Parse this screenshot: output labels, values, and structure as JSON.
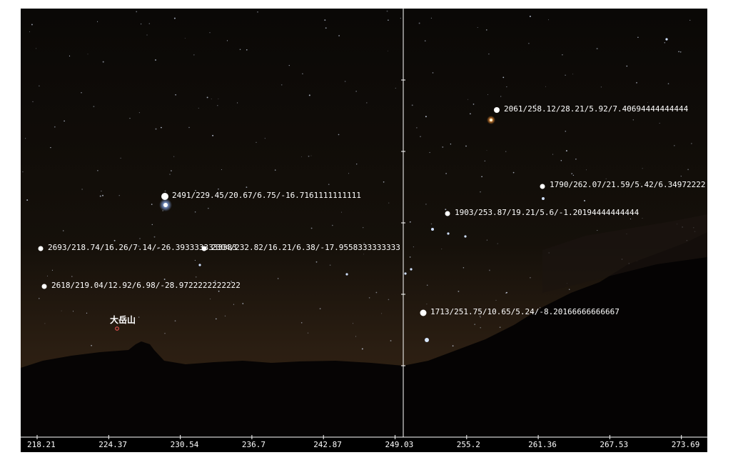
{
  "stars": [
    {
      "id": "2061",
      "label": "2061/258.12/28.21/5.92/7.40694444444444"
    },
    {
      "id": "1790",
      "label": "1790/262.07/21.59/5.42/6.34972222"
    },
    {
      "id": "2491",
      "label": "2491/229.45/20.67/6.75/-16.7161111111111"
    },
    {
      "id": "1903",
      "label": "1903/253.87/19.21/5.6/-1.20194444444444"
    },
    {
      "id": "2693",
      "label": "2693/218.74/16.26/7.14/-26.3933333333333"
    },
    {
      "id": "2304",
      "label": "2304/232.82/16.21/6.38/-17.9558333333333"
    },
    {
      "id": "2618",
      "label": "2618/219.04/12.92/6.98/-28.9722222222222"
    },
    {
      "id": "1713",
      "label": "1713/251.75/10.65/5.24/-8.20166666666667"
    }
  ],
  "landmark": {
    "label": "大岳山",
    "color": "#ff5a5a"
  },
  "x_axis": {
    "ticks": [
      "218.21",
      "224.37",
      "230.54",
      "236.7",
      "242.87",
      "249.03",
      "255.2",
      "261.36",
      "267.53",
      "273.69"
    ]
  },
  "colors": {
    "sky": "#0b0806",
    "horizon": "#2a1d10",
    "mountain": "#070505",
    "axis": "#ffffff"
  }
}
